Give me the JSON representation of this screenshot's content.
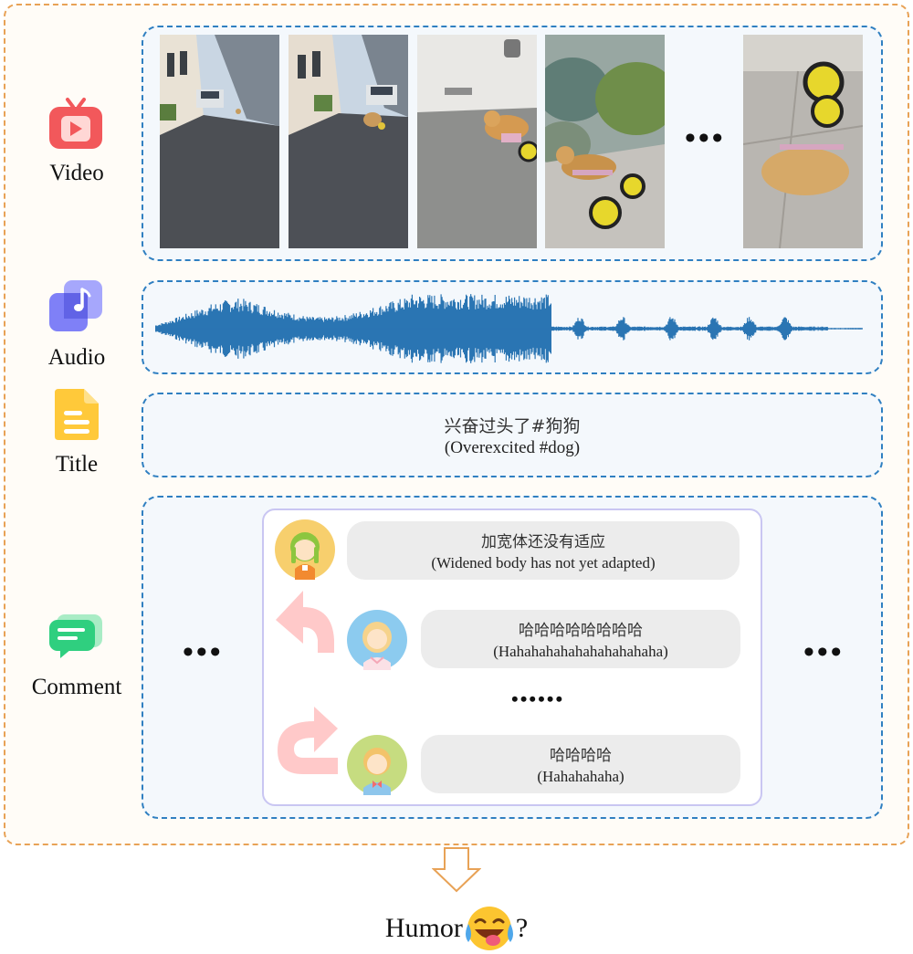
{
  "modalities": {
    "video": {
      "label": "Video",
      "icon": "video-play-icon"
    },
    "audio": {
      "label": "Audio",
      "icon": "music-note-icon"
    },
    "title": {
      "label": "Title",
      "icon": "document-icon"
    },
    "comment": {
      "label": "Comment",
      "icon": "chat-icon"
    }
  },
  "video": {
    "ellipsis": "•••",
    "frames": [
      "dog in alley far",
      "dog in alley near",
      "dog running in wheelchair",
      "dog by plants in wheelchair",
      "dog fallen over with wheels up"
    ]
  },
  "title_panel": {
    "zh": "兴奋过头了#狗狗",
    "en": "(Overexcited #dog)"
  },
  "comments": {
    "side_ellipsis": "•••",
    "mid_ellipsis": "••••••",
    "items": [
      {
        "zh": "加宽体还没有适应",
        "en": "(Widened body has not yet adapted)"
      },
      {
        "zh": "哈哈哈哈哈哈哈哈",
        "en": "(Hahahahahahahahahahaha)"
      },
      {
        "zh": "哈哈哈哈",
        "en": "(Hahahahaha)"
      }
    ]
  },
  "output": {
    "label": "Humor",
    "question": "?",
    "icon": "laughing-emoji-icon"
  },
  "colors": {
    "outer_border": "#e8a256",
    "panel_border": "#2f7fc1",
    "waveform": "#2a75b3",
    "arrow": "#ffc9c9",
    "thread_border": "#c9c6f2"
  }
}
